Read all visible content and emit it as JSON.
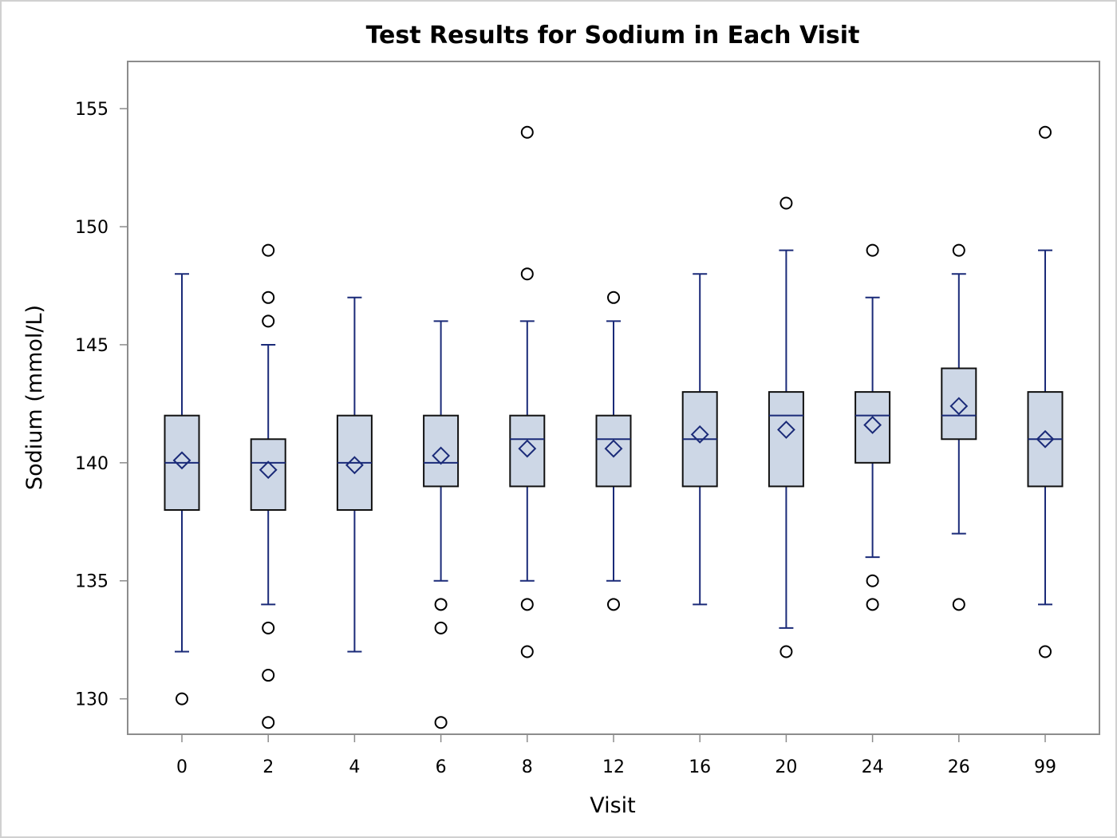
{
  "chart_data": {
    "type": "boxplot",
    "title": "Test Results for Sodium in Each Visit",
    "xlabel": "Visit",
    "ylabel": "Sodium (mmol/L)",
    "ylim": [
      128.5,
      157
    ],
    "yticks": [
      130,
      135,
      140,
      145,
      150,
      155
    ],
    "grid": false,
    "colors": {
      "box_fill": "#cdd7e6",
      "box_edge": "#111111",
      "whisker": "#1a2a78",
      "median": "#1a2a78",
      "mean_marker": "#1a2a78",
      "outlier": "#000000",
      "frame": "#8c8c8c"
    },
    "categories": [
      "0",
      "2",
      "4",
      "6",
      "8",
      "12",
      "16",
      "20",
      "24",
      "26",
      "99"
    ],
    "boxes": [
      {
        "category": "0",
        "whisker_low": 132,
        "q1": 138,
        "median": 140,
        "q3": 142,
        "whisker_high": 148,
        "mean": 140.1,
        "outliers": [
          130
        ]
      },
      {
        "category": "2",
        "whisker_low": 134,
        "q1": 138,
        "median": 140,
        "q3": 141,
        "whisker_high": 145,
        "mean": 139.7,
        "outliers": [
          149,
          147,
          146,
          133,
          131,
          129
        ]
      },
      {
        "category": "4",
        "whisker_low": 132,
        "q1": 138,
        "median": 140,
        "q3": 142,
        "whisker_high": 147,
        "mean": 139.9,
        "outliers": []
      },
      {
        "category": "6",
        "whisker_low": 135,
        "q1": 139,
        "median": 140,
        "q3": 142,
        "whisker_high": 146,
        "mean": 140.3,
        "outliers": [
          134,
          133,
          129
        ]
      },
      {
        "category": "8",
        "whisker_low": 135,
        "q1": 139,
        "median": 141,
        "q3": 142,
        "whisker_high": 146,
        "mean": 140.6,
        "outliers": [
          154,
          148,
          134,
          132
        ]
      },
      {
        "category": "12",
        "whisker_low": 135,
        "q1": 139,
        "median": 141,
        "q3": 142,
        "whisker_high": 146,
        "mean": 140.6,
        "outliers": [
          147,
          134
        ]
      },
      {
        "category": "16",
        "whisker_low": 134,
        "q1": 139,
        "median": 141,
        "q3": 143,
        "whisker_high": 148,
        "mean": 141.2,
        "outliers": []
      },
      {
        "category": "20",
        "whisker_low": 133,
        "q1": 139,
        "median": 142,
        "q3": 143,
        "whisker_high": 149,
        "mean": 141.4,
        "outliers": [
          151,
          132
        ]
      },
      {
        "category": "24",
        "whisker_low": 136,
        "q1": 140,
        "median": 142,
        "q3": 143,
        "whisker_high": 147,
        "mean": 141.6,
        "outliers": [
          149,
          135,
          134
        ]
      },
      {
        "category": "26",
        "whisker_low": 137,
        "q1": 141,
        "median": 142,
        "q3": 144,
        "whisker_high": 148,
        "mean": 142.4,
        "outliers": [
          149,
          134
        ]
      },
      {
        "category": "99",
        "whisker_low": 134,
        "q1": 139,
        "median": 141,
        "q3": 143,
        "whisker_high": 149,
        "mean": 141.0,
        "outliers": [
          154,
          132
        ]
      }
    ]
  }
}
